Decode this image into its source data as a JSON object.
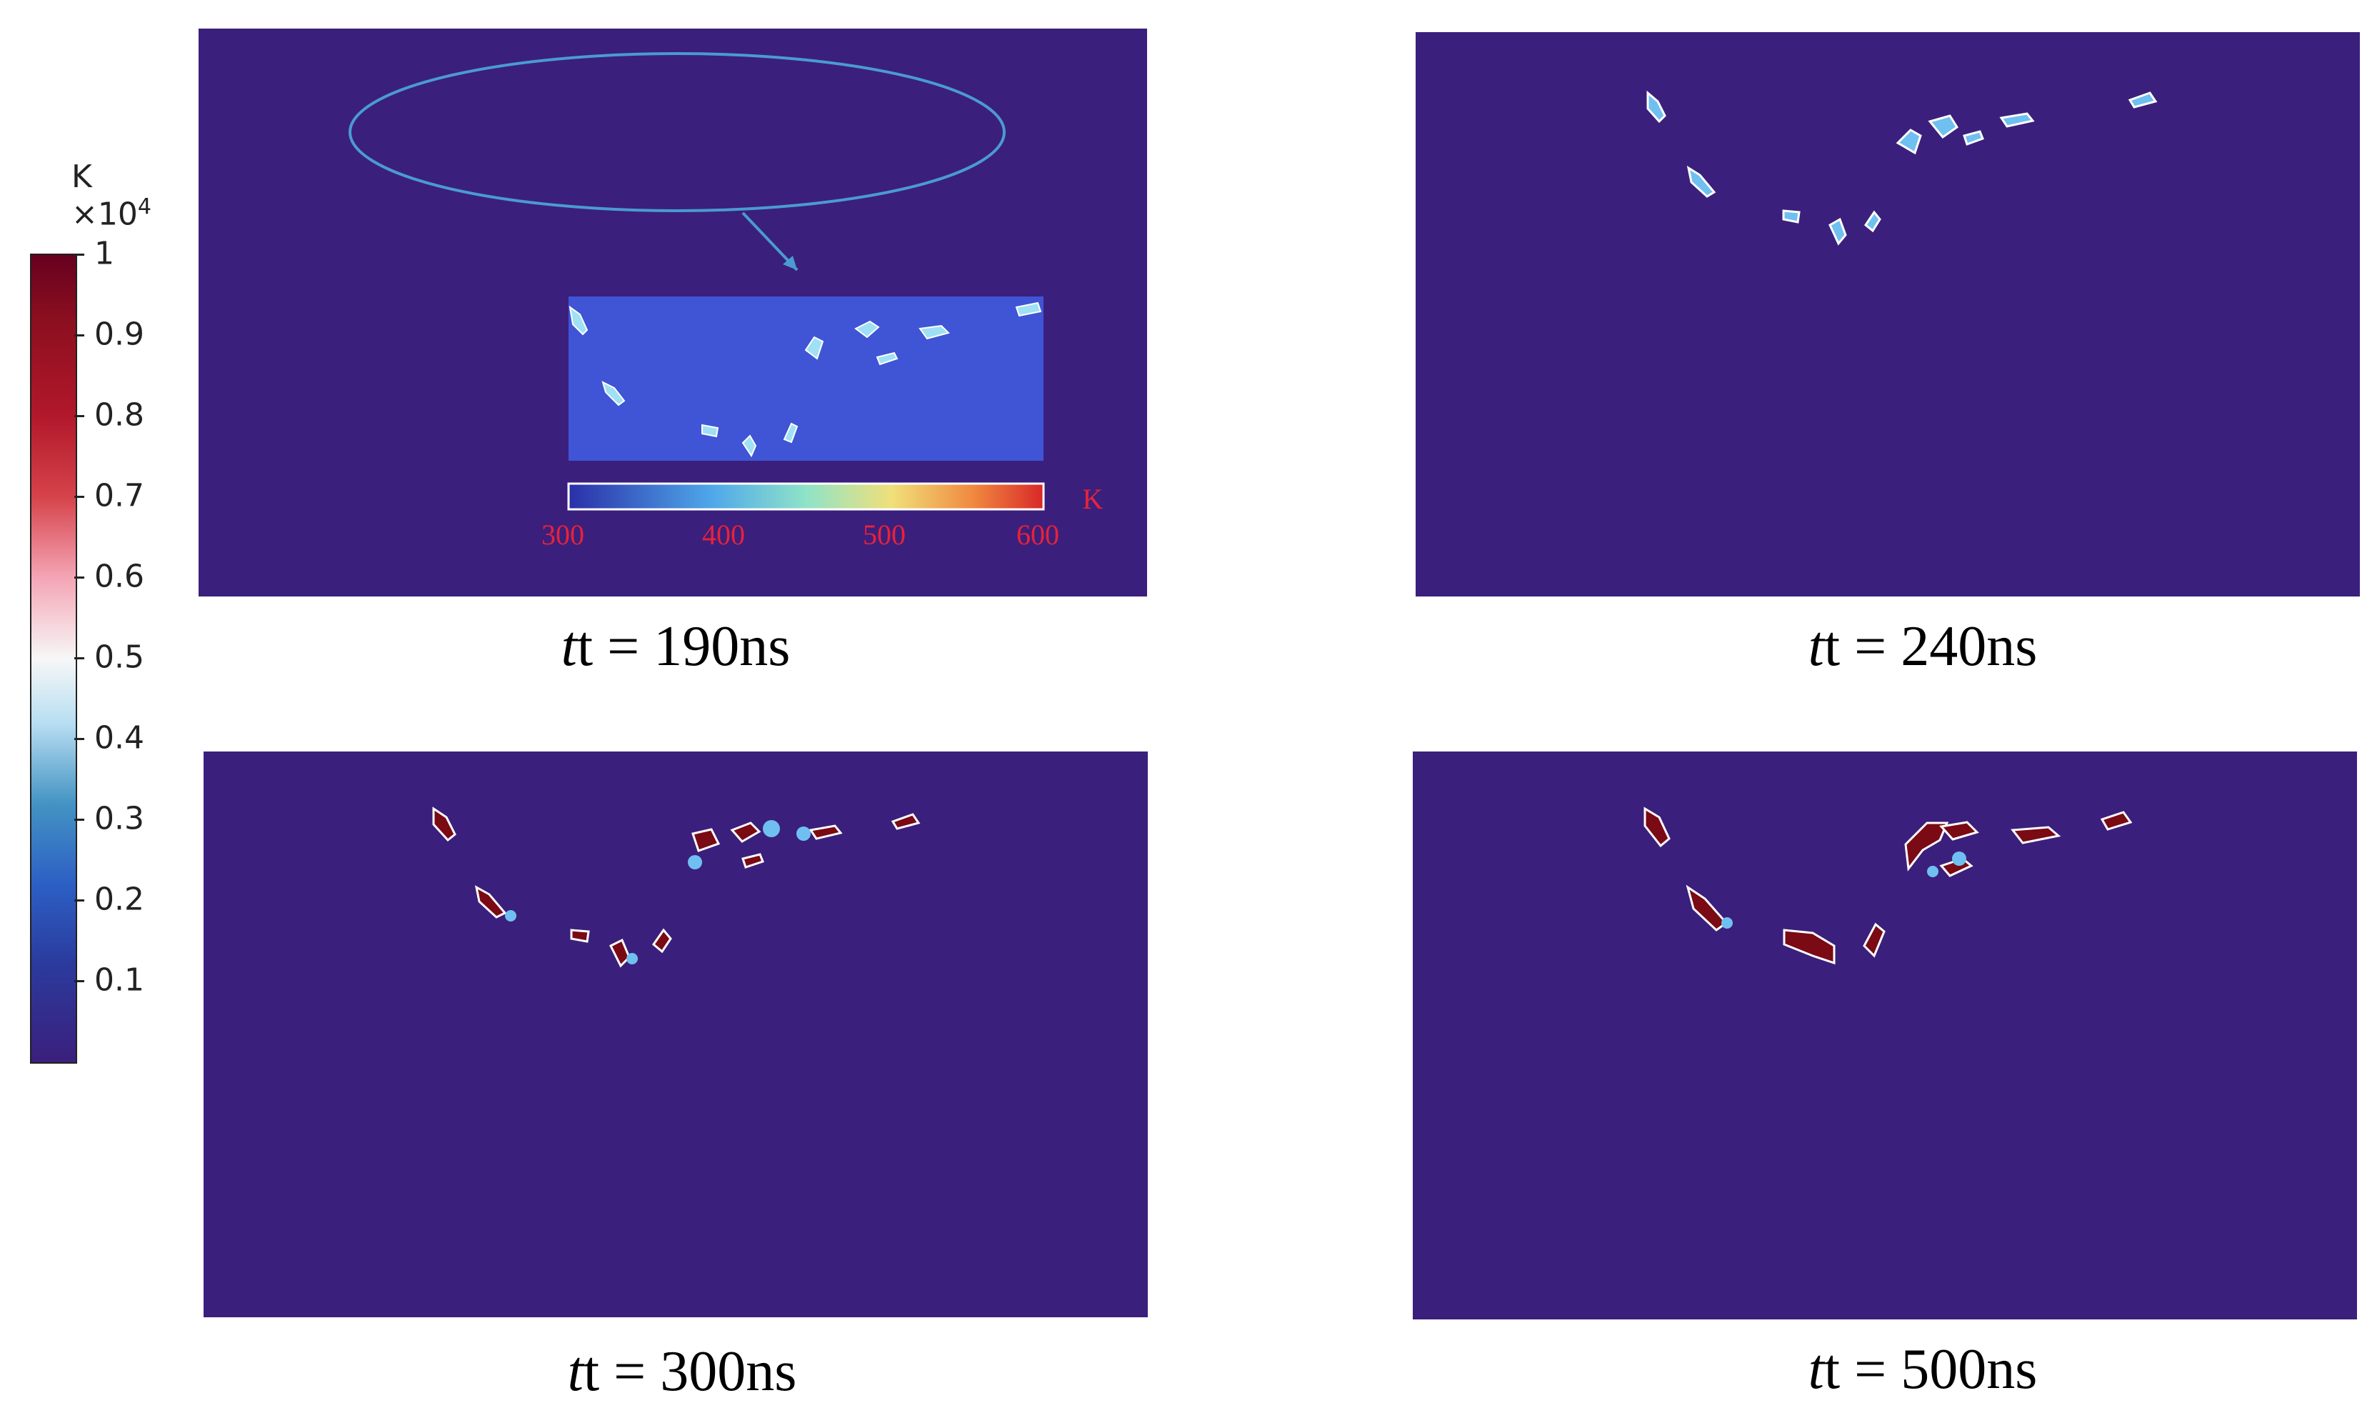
{
  "colorbar": {
    "unit": "K",
    "multiplier": "×10",
    "exponent": "4",
    "ticks": [
      "1",
      "0.9",
      "0.8",
      "0.7",
      "0.6",
      "0.5",
      "0.4",
      "0.3",
      "0.2",
      "0.1"
    ]
  },
  "panels": [
    {
      "id": "t190",
      "time_label": "190ns"
    },
    {
      "id": "t240",
      "time_label": "240ns"
    },
    {
      "id": "t300",
      "time_label": "300ns"
    },
    {
      "id": "t500",
      "time_label": "500ns"
    }
  ],
  "caption_prefix": "t = ",
  "inset_colorbar": {
    "unit": "K",
    "ticks": [
      "300",
      "400",
      "500",
      "600"
    ]
  },
  "colors": {
    "background": "#3b1f7c",
    "hot": "#7a0a14",
    "inset_bg": "#3f55d6",
    "annotation": "#4a9bd0",
    "inset_tick_label": "#e8223a"
  }
}
